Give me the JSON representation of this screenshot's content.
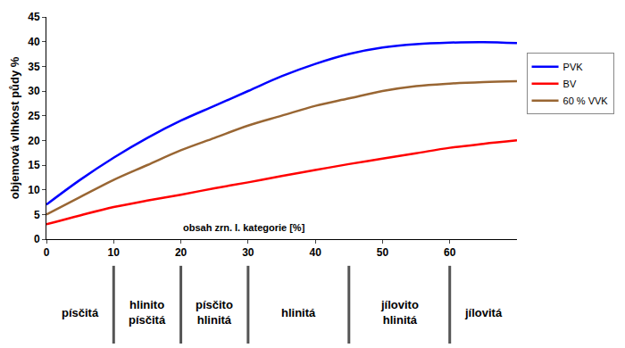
{
  "chart_data": {
    "type": "line",
    "x_label": "obsah zrn. I. kategorie [%]",
    "y_label": "objemová vlhkost půdy %",
    "x": [
      0,
      5,
      10,
      15,
      20,
      25,
      30,
      35,
      40,
      45,
      50,
      55,
      60,
      65,
      70
    ],
    "series": [
      {
        "name": "PVK",
        "color": "#0000ff",
        "values": [
          7,
          12,
          16.5,
          20.5,
          24,
          27,
          30,
          33,
          35.5,
          37.5,
          38.8,
          39.5,
          39.8,
          39.9,
          39.7
        ]
      },
      {
        "name": "BV",
        "color": "#ff0000",
        "values": [
          3,
          4.8,
          6.5,
          7.8,
          9,
          10.3,
          11.5,
          12.8,
          14,
          15.2,
          16.3,
          17.4,
          18.5,
          19.3,
          20
        ]
      },
      {
        "name": "60 % VVK",
        "color": "#996633",
        "values": [
          5,
          8.5,
          12,
          15,
          18,
          20.5,
          23,
          25,
          27,
          28.5,
          30,
          31,
          31.5,
          31.8,
          32
        ]
      }
    ],
    "xlim": [
      0,
      70
    ],
    "xticks": [
      0,
      10,
      20,
      30,
      40,
      50,
      60
    ],
    "ylim": [
      0,
      45
    ],
    "yticks": [
      0,
      5,
      10,
      15,
      20,
      25,
      30,
      35,
      40,
      45
    ],
    "grid": false,
    "legend": "right",
    "zones": [
      {
        "label": "písčitá",
        "from": 0,
        "to": 10
      },
      {
        "label": "hlinito písčitá",
        "from": 10,
        "to": 20
      },
      {
        "label": "písčito hlinitá",
        "from": 20,
        "to": 30
      },
      {
        "label": "hlinitá",
        "from": 30,
        "to": 45
      },
      {
        "label": "jílovito hlinitá",
        "from": 45,
        "to": 60
      },
      {
        "label": "jílovitá",
        "from": 60,
        "to": 70
      }
    ]
  }
}
